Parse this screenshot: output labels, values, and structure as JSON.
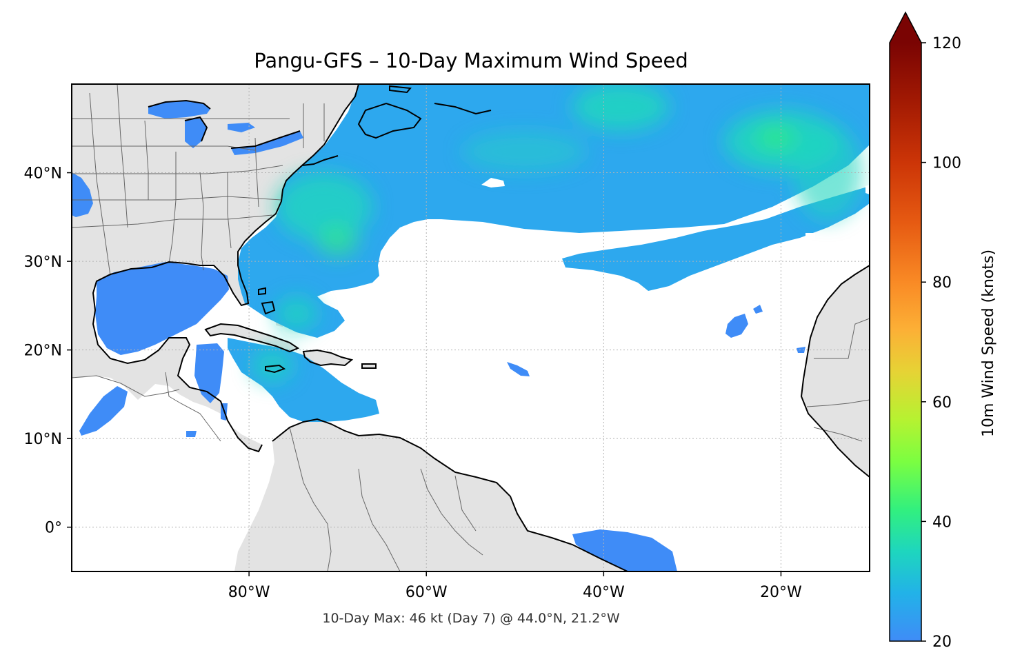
{
  "chart_data": {
    "type": "heatmap",
    "title": "Pangu-GFS – 10-Day Maximum Wind Speed",
    "footer": "10-Day Max: 46 kt (Day 7) @ 44.0°N, 21.2°W",
    "lon_range": [
      -100,
      -10
    ],
    "lat_range": [
      -5,
      50
    ],
    "x_ticks": [
      {
        "lon": -80,
        "label": "80°W"
      },
      {
        "lon": -60,
        "label": "60°W"
      },
      {
        "lon": -40,
        "label": "40°W"
      },
      {
        "lon": -20,
        "label": "20°W"
      }
    ],
    "y_ticks": [
      {
        "lat": 40,
        "label": "40°N"
      },
      {
        "lat": 30,
        "label": "30°N"
      },
      {
        "lat": 20,
        "label": "20°N"
      },
      {
        "lat": 10,
        "label": "10°N"
      },
      {
        "lat": 0,
        "label": "0°"
      }
    ],
    "gridlines": true,
    "colorbar": {
      "label": "10m Wind Speed (knots)",
      "min": 20,
      "max": 120,
      "extend": "max",
      "cmap": "turbo",
      "ticks": [
        {
          "value": 20,
          "label": "20"
        },
        {
          "value": 40,
          "label": "40"
        },
        {
          "value": 60,
          "label": "60"
        },
        {
          "value": 80,
          "label": "80"
        },
        {
          "value": 100,
          "label": "100"
        },
        {
          "value": 120,
          "label": "120"
        }
      ],
      "stops": [
        {
          "v": 20,
          "color": "#3f8cf7"
        },
        {
          "v": 28,
          "color": "#22b2e8"
        },
        {
          "v": 35,
          "color": "#1ed6be"
        },
        {
          "v": 42,
          "color": "#32f07e"
        },
        {
          "v": 50,
          "color": "#7bfe41"
        },
        {
          "v": 57,
          "color": "#b6f231"
        },
        {
          "v": 65,
          "color": "#e6d335"
        },
        {
          "v": 72,
          "color": "#fcb036"
        },
        {
          "v": 80,
          "color": "#f98a25"
        },
        {
          "v": 90,
          "color": "#e65a12"
        },
        {
          "v": 100,
          "color": "#cc3507"
        },
        {
          "v": 110,
          "color": "#a31a03"
        },
        {
          "v": 120,
          "color": "#7a0403"
        }
      ]
    },
    "max_point": {
      "value": 46,
      "unit": "kt",
      "day": 7,
      "lat": 44.0,
      "lon": -21.2
    },
    "colors": {
      "land": "#e3e3e3",
      "ocean": "#ffffff",
      "coastline": "#000000",
      "borders": "#666666"
    }
  }
}
